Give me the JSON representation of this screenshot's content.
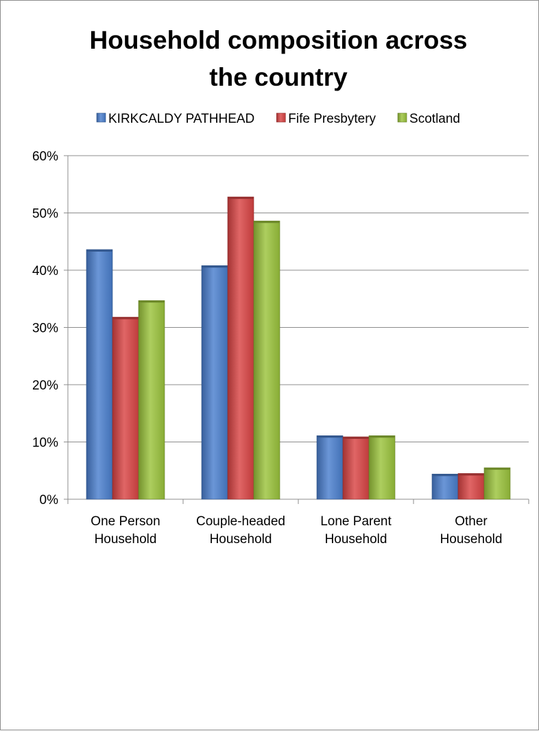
{
  "chart_data": {
    "type": "bar",
    "title_lines": [
      "Household composition across",
      "the country"
    ],
    "categories": [
      [
        "One Person",
        "Household"
      ],
      [
        "Couple-headed",
        "Household"
      ],
      [
        "Lone Parent",
        "Household"
      ],
      [
        "Other",
        "Household"
      ]
    ],
    "series": [
      {
        "name": "KIRKCALDY PATHHEAD",
        "color": "#4a7fce",
        "values": [
          43.6,
          40.8,
          11.1,
          4.4
        ]
      },
      {
        "name": "Fife Presbytery",
        "color": "#d94444",
        "values": [
          31.8,
          52.8,
          10.9,
          4.5
        ]
      },
      {
        "name": "Scotland",
        "color": "#9bc33c",
        "values": [
          34.7,
          48.6,
          11.1,
          5.5
        ]
      }
    ],
    "ylim": [
      0,
      60
    ],
    "yticks": [
      0,
      10,
      20,
      30,
      40,
      50,
      60
    ],
    "ytick_labels": [
      "0%",
      "10%",
      "20%",
      "30%",
      "40%",
      "50%",
      "60%"
    ],
    "grid": true,
    "legend_position": "top"
  }
}
